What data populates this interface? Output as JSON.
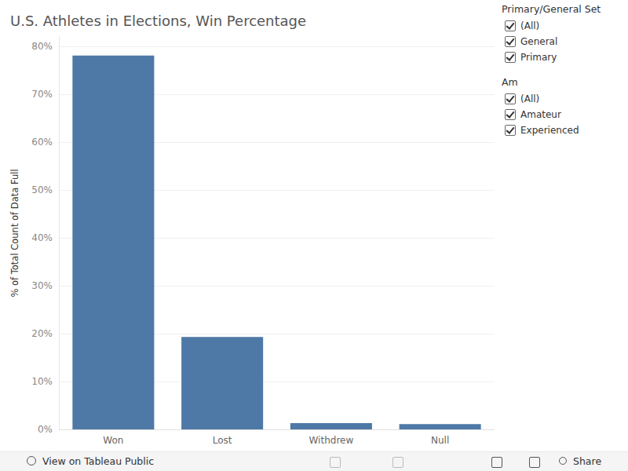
{
  "chart_data": {
    "type": "bar",
    "title": "U.S. Athletes in Elections, Win Percentage",
    "y_label": "% of Total Count of Data Full",
    "categories": [
      "Won",
      "Lost",
      "Withdrew",
      "Null"
    ],
    "values": [
      78.1,
      19.3,
      1.3,
      1.1
    ],
    "color": "#4e79a7",
    "ylim": [
      0,
      82
    ],
    "yticks": [
      {
        "value": 0,
        "label": "0%"
      },
      {
        "value": 10,
        "label": "10%"
      },
      {
        "value": 20,
        "label": "20%"
      },
      {
        "value": 30,
        "label": "30%"
      },
      {
        "value": 40,
        "label": "40%"
      },
      {
        "value": 50,
        "label": "50%"
      },
      {
        "value": 60,
        "label": "60%"
      },
      {
        "value": 70,
        "label": "70%"
      },
      {
        "value": 80,
        "label": "80%"
      }
    ],
    "grid": true
  },
  "filters": [
    {
      "title": "Primary/General Set",
      "options": [
        "(All)",
        "General",
        "Primary"
      ]
    },
    {
      "title": "Am",
      "options": [
        "(All)",
        "Amateur",
        "Experienced"
      ]
    }
  ],
  "toolbar": {
    "left": "View on Tableau Public",
    "right": "Share"
  }
}
